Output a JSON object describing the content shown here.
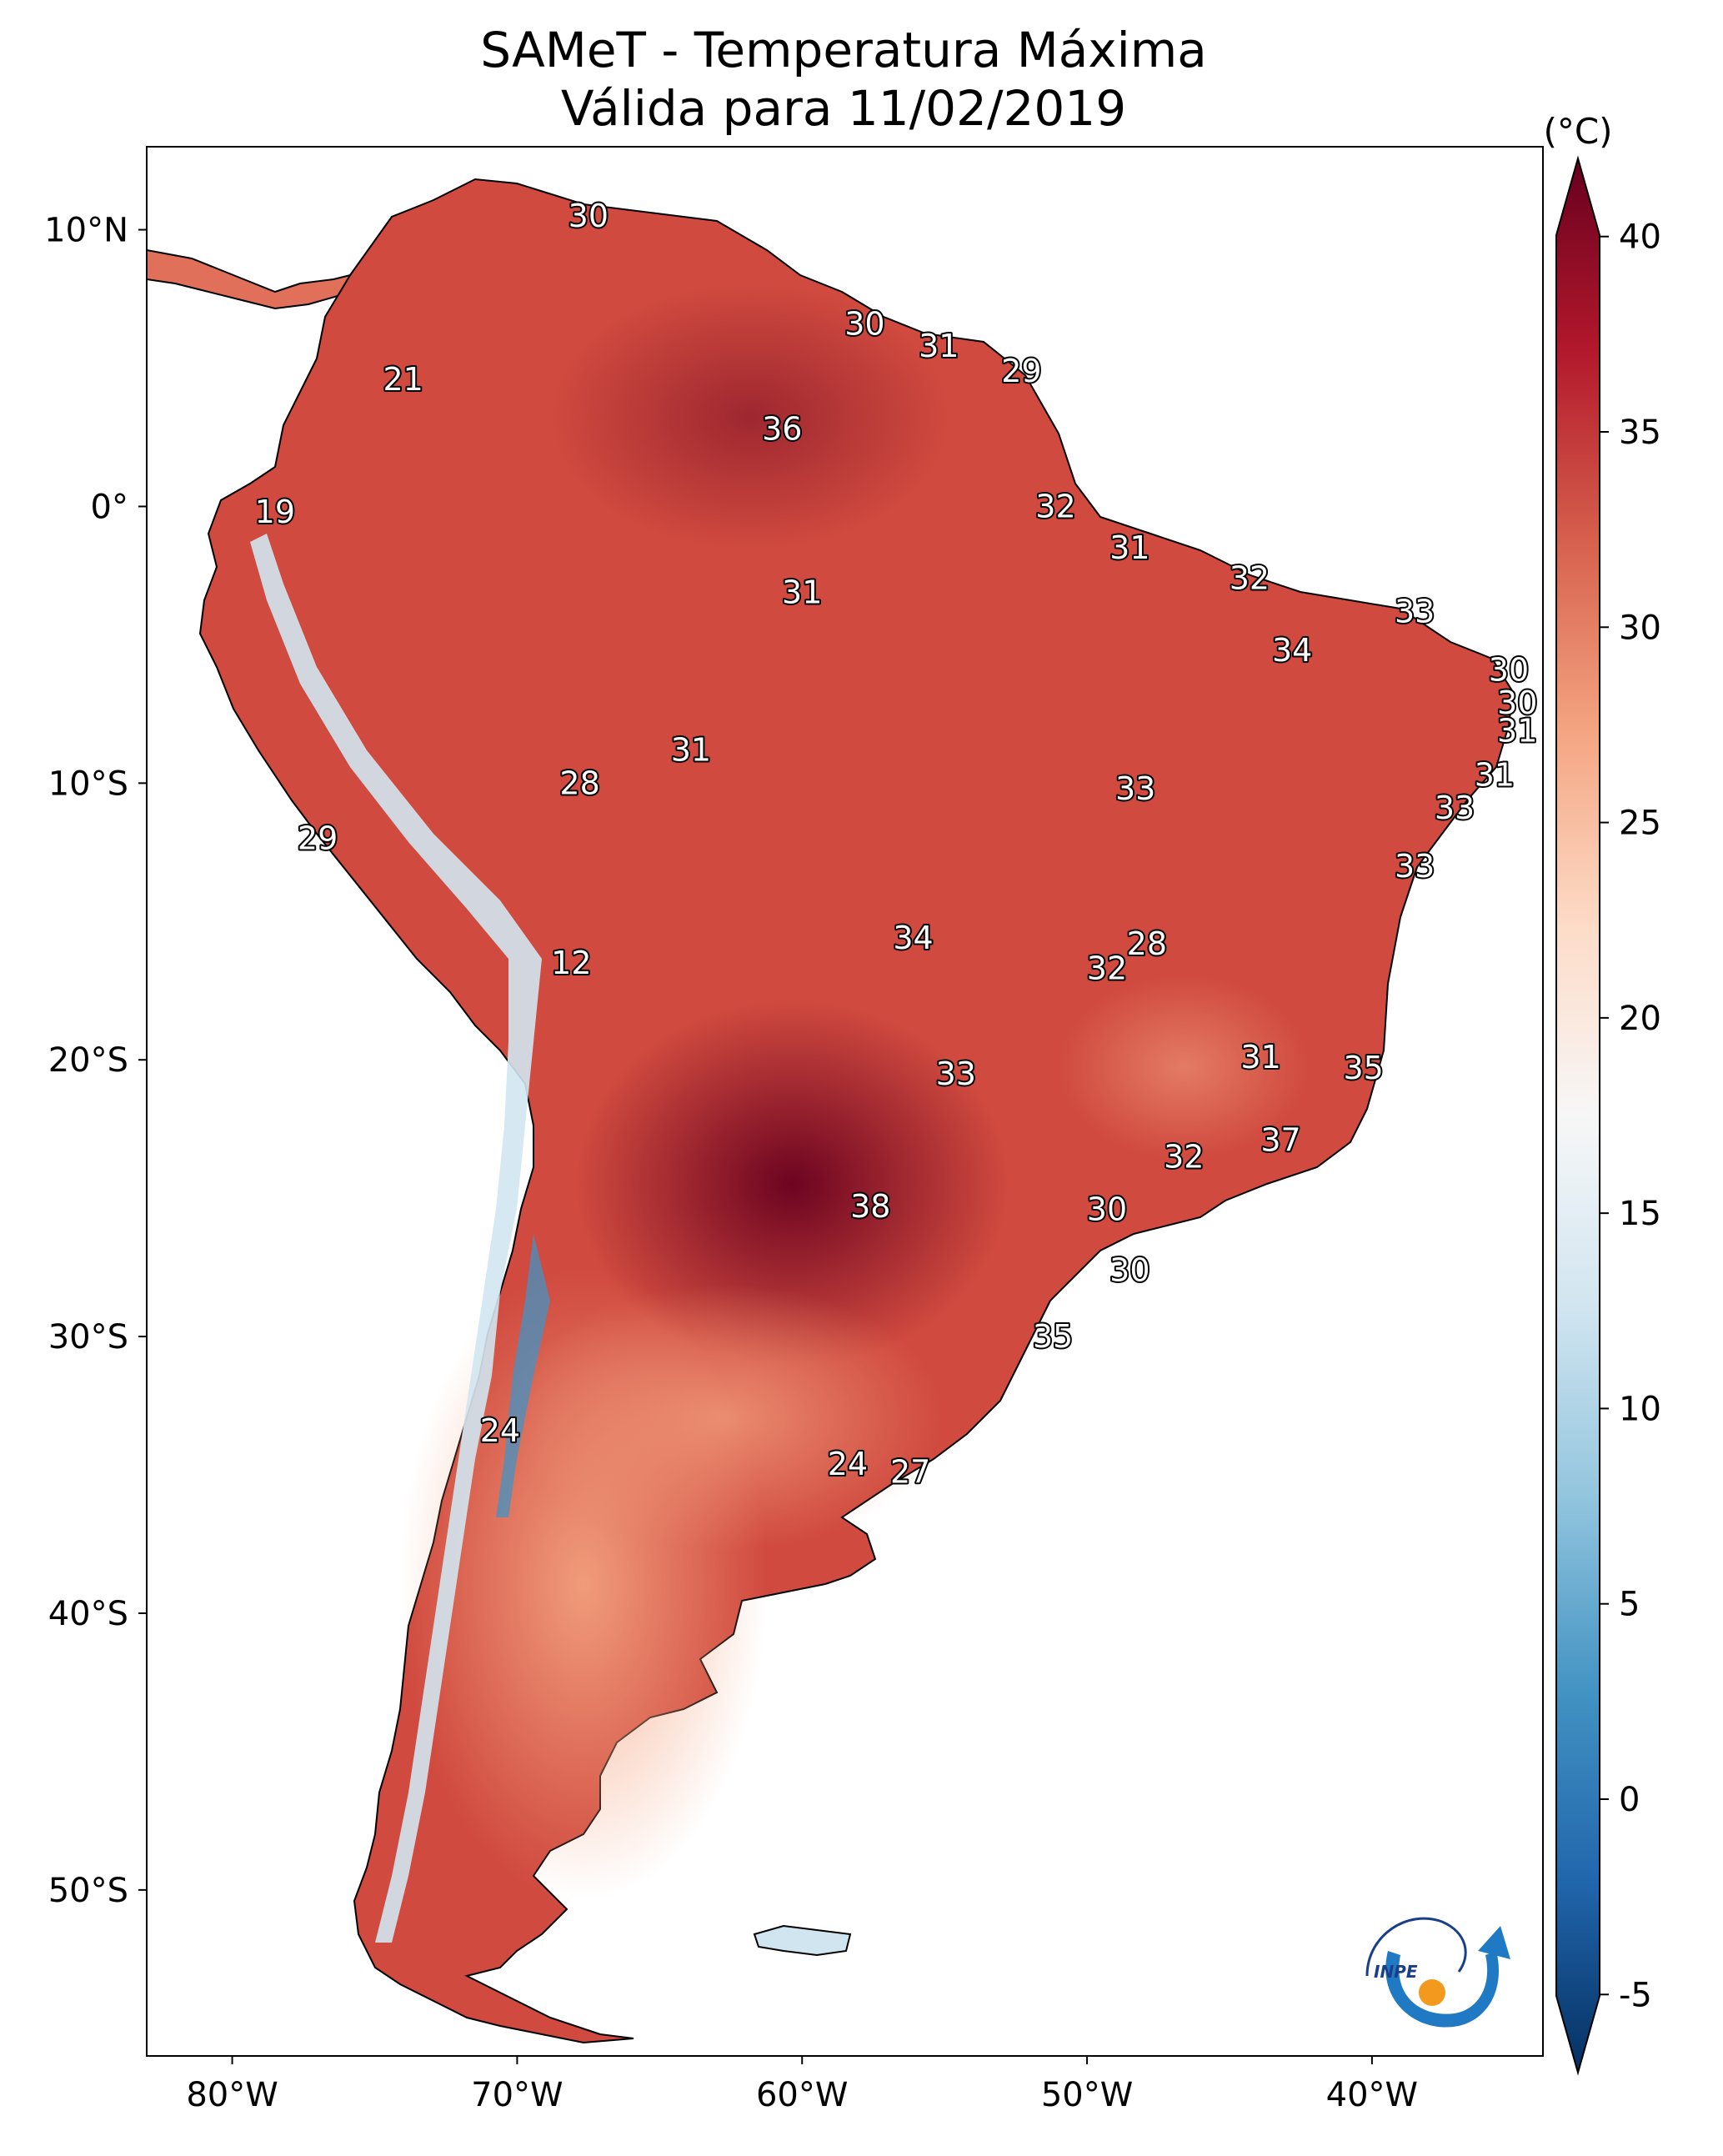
{
  "title": {
    "line1": "SAMeT - Temperatura Máxima",
    "line2": "Válida para 11/02/2019"
  },
  "map": {
    "region": "South America",
    "lon_range": [
      -83,
      -34
    ],
    "lat_range": [
      -56,
      13
    ],
    "x_ticks": [
      {
        "lon": -80,
        "label": "80°W"
      },
      {
        "lon": -70,
        "label": "70°W"
      },
      {
        "lon": -60,
        "label": "60°W"
      },
      {
        "lon": -50,
        "label": "50°W"
      },
      {
        "lon": -40,
        "label": "40°W"
      }
    ],
    "y_ticks": [
      {
        "lat": 10,
        "label": "10°N"
      },
      {
        "lat": 0,
        "label": "0°"
      },
      {
        "lat": -10,
        "label": "10°S"
      },
      {
        "lat": -20,
        "label": "20°S"
      },
      {
        "lat": -30,
        "label": "30°S"
      },
      {
        "lat": -40,
        "label": "40°S"
      },
      {
        "lat": -50,
        "label": "50°S"
      }
    ],
    "point_labels": [
      {
        "lon": -67.5,
        "lat": 10.5,
        "value": "30"
      },
      {
        "lon": -74.0,
        "lat": 4.6,
        "value": "21"
      },
      {
        "lon": -78.5,
        "lat": -0.2,
        "value": "19"
      },
      {
        "lon": -77.0,
        "lat": -12.0,
        "value": "29"
      },
      {
        "lon": -57.8,
        "lat": 6.6,
        "value": "30"
      },
      {
        "lon": -55.2,
        "lat": 5.8,
        "value": "31"
      },
      {
        "lon": -52.3,
        "lat": 4.9,
        "value": "29"
      },
      {
        "lon": -60.7,
        "lat": 2.8,
        "value": "36"
      },
      {
        "lon": -51.1,
        "lat": 0.0,
        "value": "32"
      },
      {
        "lon": -48.5,
        "lat": -1.5,
        "value": "31"
      },
      {
        "lon": -60.0,
        "lat": -3.1,
        "value": "31"
      },
      {
        "lon": -44.3,
        "lat": -2.6,
        "value": "32"
      },
      {
        "lon": -38.5,
        "lat": -3.8,
        "value": "33"
      },
      {
        "lon": -42.8,
        "lat": -5.2,
        "value": "34"
      },
      {
        "lon": -35.2,
        "lat": -5.9,
        "value": "30"
      },
      {
        "lon": -34.9,
        "lat": -7.1,
        "value": "30"
      },
      {
        "lon": -34.9,
        "lat": -8.1,
        "value": "31"
      },
      {
        "lon": -35.7,
        "lat": -9.7,
        "value": "31"
      },
      {
        "lon": -37.1,
        "lat": -10.9,
        "value": "33"
      },
      {
        "lon": -38.5,
        "lat": -13.0,
        "value": "33"
      },
      {
        "lon": -63.9,
        "lat": -8.8,
        "value": "31"
      },
      {
        "lon": -67.8,
        "lat": -10.0,
        "value": "28"
      },
      {
        "lon": -48.3,
        "lat": -10.2,
        "value": "33"
      },
      {
        "lon": -56.1,
        "lat": -15.6,
        "value": "34"
      },
      {
        "lon": -47.9,
        "lat": -15.8,
        "value": "28"
      },
      {
        "lon": -49.3,
        "lat": -16.7,
        "value": "32"
      },
      {
        "lon": -68.1,
        "lat": -16.5,
        "value": "12"
      },
      {
        "lon": -43.9,
        "lat": -19.9,
        "value": "31"
      },
      {
        "lon": -40.3,
        "lat": -20.3,
        "value": "35"
      },
      {
        "lon": -54.6,
        "lat": -20.5,
        "value": "33"
      },
      {
        "lon": -43.2,
        "lat": -22.9,
        "value": "37"
      },
      {
        "lon": -46.6,
        "lat": -23.5,
        "value": "32"
      },
      {
        "lon": -57.6,
        "lat": -25.3,
        "value": "38"
      },
      {
        "lon": -49.3,
        "lat": -25.4,
        "value": "30"
      },
      {
        "lon": -48.5,
        "lat": -27.6,
        "value": "30"
      },
      {
        "lon": -51.2,
        "lat": -30.0,
        "value": "35"
      },
      {
        "lon": -70.6,
        "lat": -33.4,
        "value": "24"
      },
      {
        "lon": -56.2,
        "lat": -34.9,
        "value": "27"
      },
      {
        "lon": -58.4,
        "lat": -34.6,
        "value": "24"
      }
    ]
  },
  "colorbar": {
    "unit": "(°C)",
    "min": -7,
    "max": 42,
    "ticks": [
      {
        "value": 40,
        "label": "40"
      },
      {
        "value": 35,
        "label": "35"
      },
      {
        "value": 30,
        "label": "30"
      },
      {
        "value": 25,
        "label": "25"
      },
      {
        "value": 20,
        "label": "20"
      },
      {
        "value": 15,
        "label": "15"
      },
      {
        "value": 10,
        "label": "10"
      },
      {
        "value": 5,
        "label": "5"
      },
      {
        "value": 0,
        "label": "0"
      },
      {
        "value": -5,
        "label": "-5"
      }
    ],
    "colors": [
      "#053061",
      "#2166ac",
      "#4393c3",
      "#92c5de",
      "#d1e5f0",
      "#f7f7f7",
      "#fddbc7",
      "#f4a582",
      "#d6604d",
      "#b2182b",
      "#67001f"
    ]
  },
  "logo": {
    "text": "INPE",
    "colors": {
      "blue": "#1f7ac3",
      "orange": "#f39a1e",
      "navy": "#1a3f8a"
    }
  }
}
